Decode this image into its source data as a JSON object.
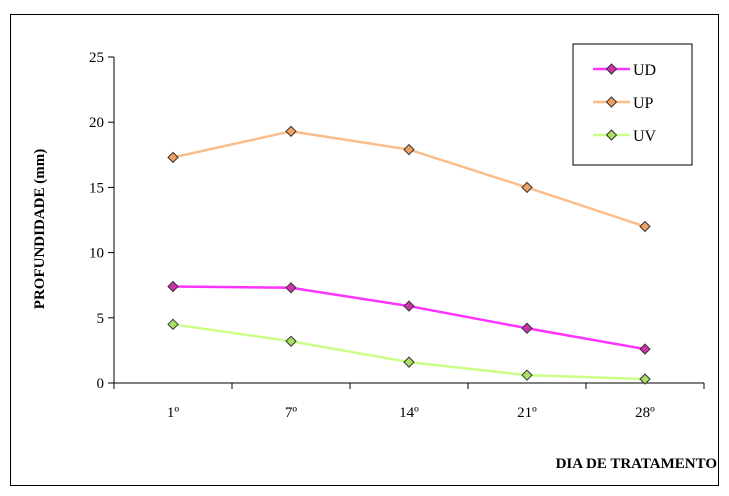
{
  "chart_data": {
    "type": "line",
    "title": "",
    "xlabel": "DIA DE TRATAMENTO",
    "ylabel": "PROFUNDIDADE (mm)",
    "categories": [
      "1º",
      "7º",
      "14º",
      "21º",
      "28º"
    ],
    "ylim": [
      0,
      25
    ],
    "yticks": [
      0,
      5,
      10,
      15,
      20,
      25
    ],
    "grid": false,
    "legend_position": "top-right",
    "series": [
      {
        "name": "UD",
        "color": "#ff33ff",
        "marker_fill": "#cc33aa",
        "values": [
          7.4,
          7.3,
          5.9,
          4.2,
          2.6
        ]
      },
      {
        "name": "UP",
        "color": "#f9be8c",
        "marker_fill": "#f0a060",
        "values": [
          17.3,
          19.3,
          17.9,
          15.0,
          12.0
        ]
      },
      {
        "name": "UV",
        "color": "#ccff88",
        "marker_fill": "#aade66",
        "values": [
          4.5,
          3.2,
          1.6,
          0.6,
          0.3
        ]
      }
    ]
  }
}
